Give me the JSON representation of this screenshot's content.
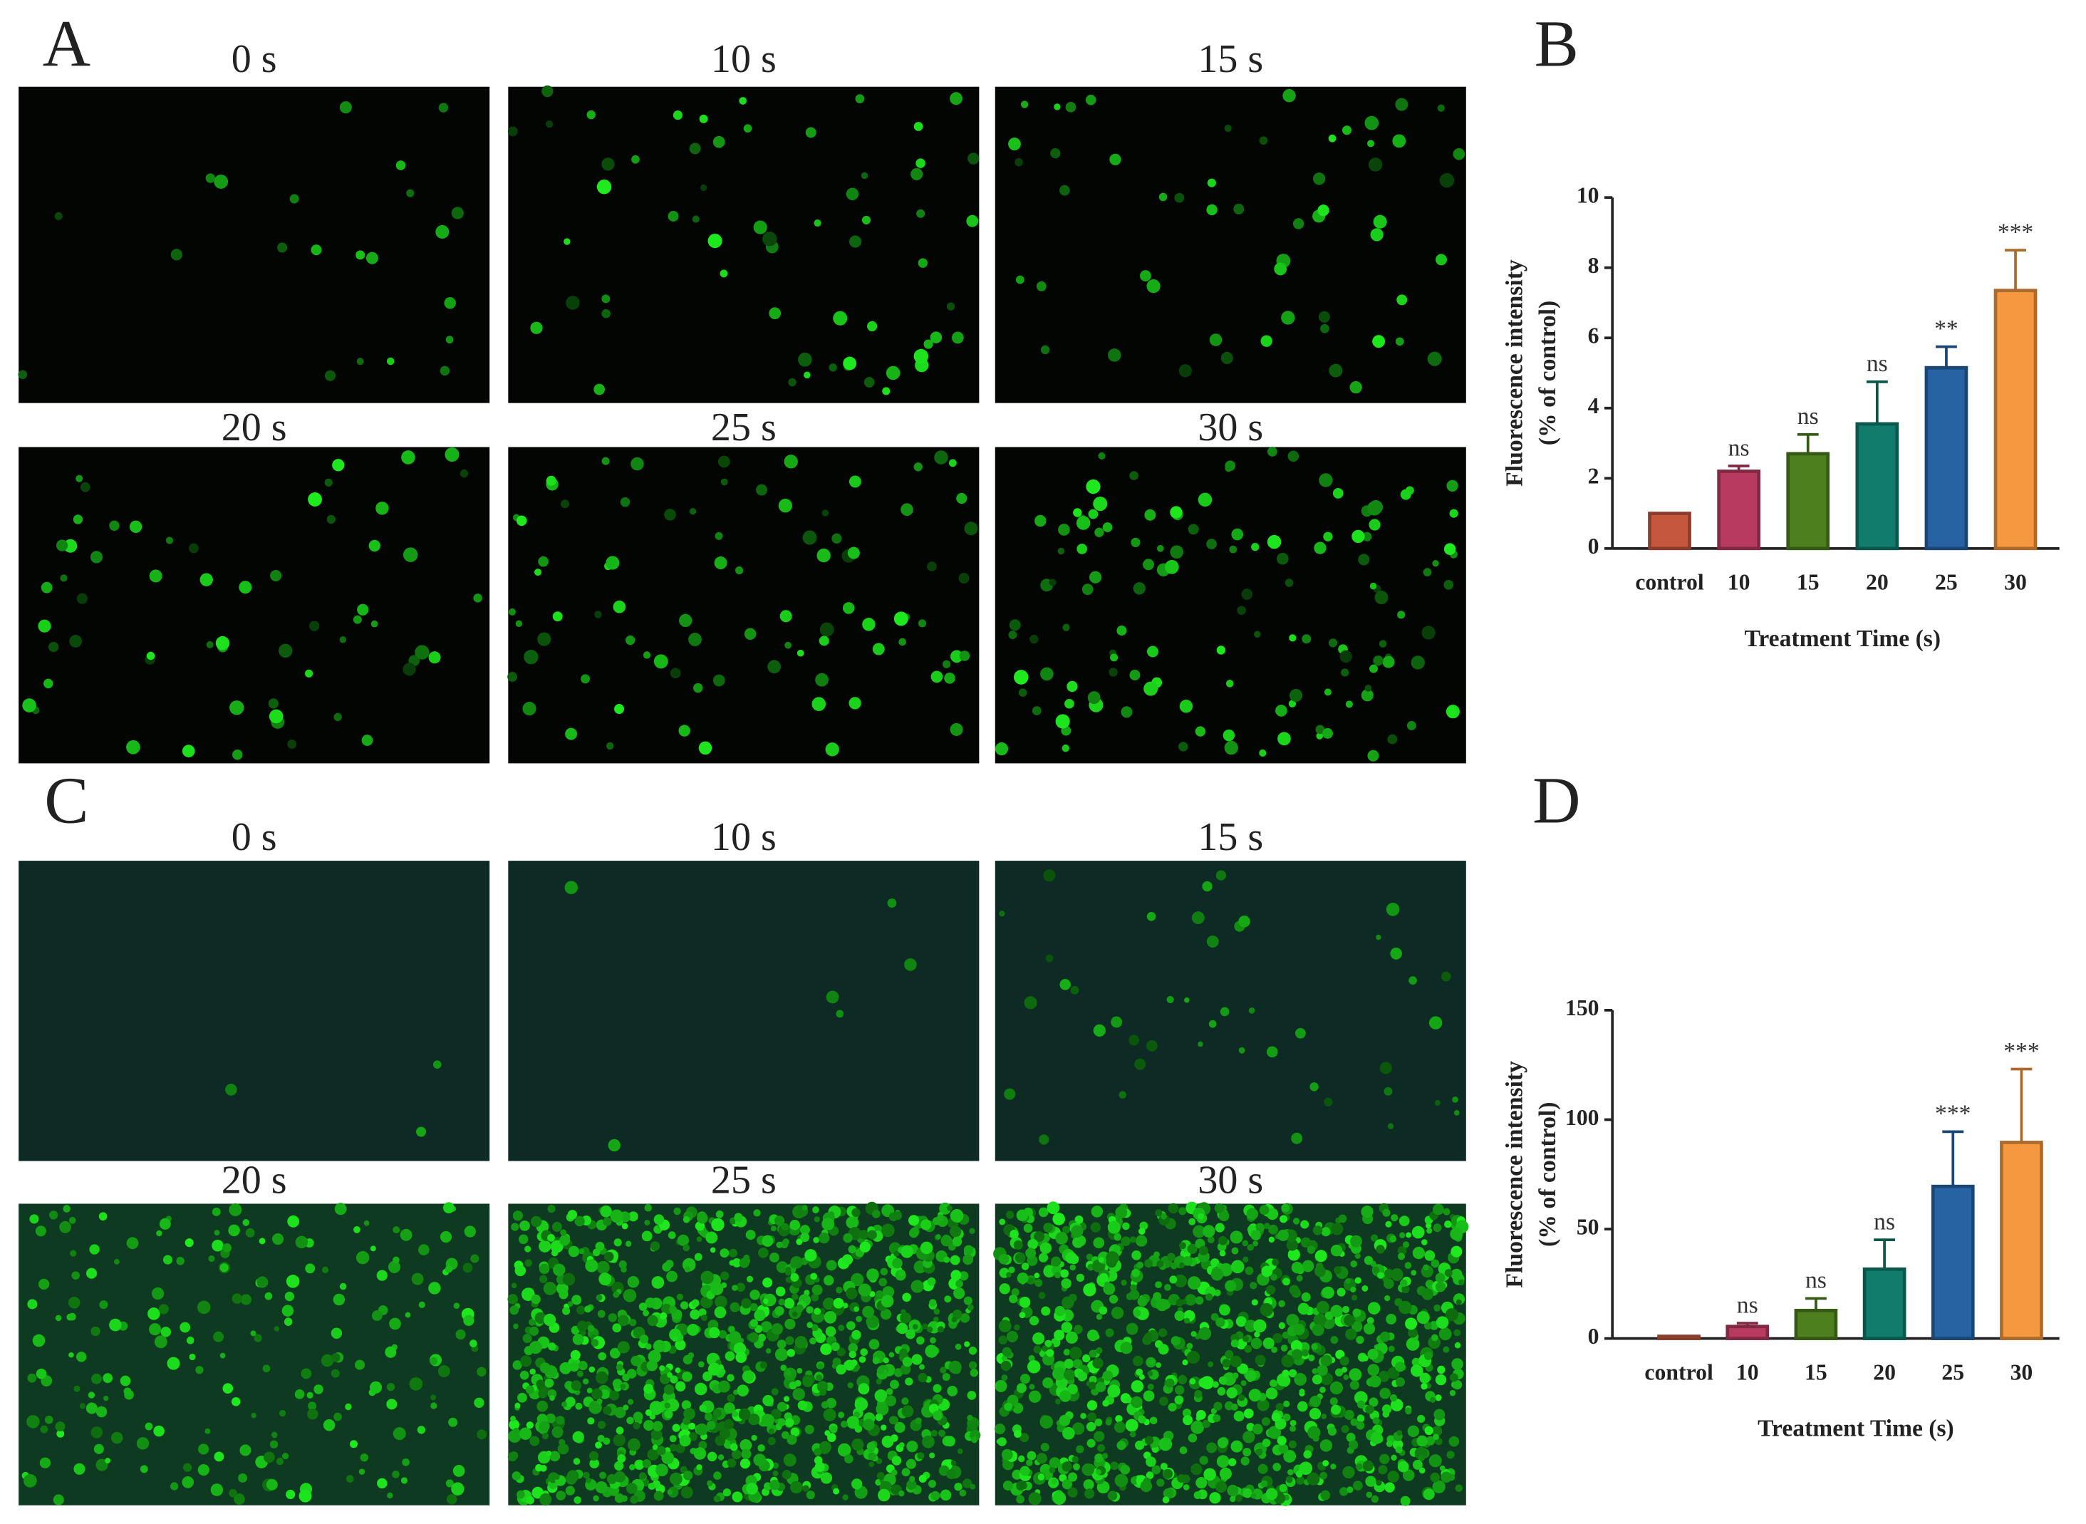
{
  "panels": [
    {
      "letter": "A",
      "images": [
        "0 s",
        "10 s",
        "15 s",
        "20 s",
        "25 s",
        "30 s"
      ]
    },
    {
      "letter": "C",
      "images": [
        "0 s",
        "10 s",
        "15 s",
        "20 s",
        "25 s",
        "30 s"
      ]
    }
  ],
  "chart_data": [
    {
      "type": "bar",
      "panel_label": "B",
      "categories": [
        "control",
        "10",
        "15",
        "20",
        "25",
        "30"
      ],
      "values": [
        1.0,
        2.2,
        2.7,
        3.55,
        5.15,
        7.35
      ],
      "errors": [
        0,
        0.15,
        0.55,
        1.2,
        0.6,
        1.15
      ],
      "annotations": [
        null,
        "ns",
        "ns",
        "ns",
        "**",
        "***"
      ],
      "colors": [
        "#c4573c",
        "#b83a60",
        "#4d7f1f",
        "#117c6b",
        "#2763a3",
        "#f5983f"
      ],
      "ylim": [
        0,
        10
      ],
      "yticks": [
        0,
        2,
        4,
        6,
        8,
        10
      ],
      "y_label": [
        "Fluorescence intensity",
        "(% of control)"
      ],
      "x_label": "Treatment Time (s)"
    },
    {
      "type": "bar",
      "panel_label": "D",
      "categories": [
        "control",
        "10",
        "15",
        "20",
        "25",
        "30"
      ],
      "values": [
        1,
        5.5,
        12.8,
        31.7,
        69.5,
        89.6
      ],
      "errors": [
        0,
        1.5,
        5.5,
        13.4,
        25,
        33.5
      ],
      "annotations": [
        null,
        "ns",
        "ns",
        "ns",
        "***",
        "***"
      ],
      "colors": [
        "#c4573c",
        "#b83a60",
        "#4d7f1f",
        "#117c6b",
        "#2763a3",
        "#f5983f"
      ],
      "ylim": [
        0,
        150
      ],
      "yticks": [
        0,
        50,
        100,
        150
      ],
      "y_label": [
        "Fluorescence intensity",
        "(% of control)"
      ],
      "x_label": "Treatment Time (s)"
    }
  ]
}
